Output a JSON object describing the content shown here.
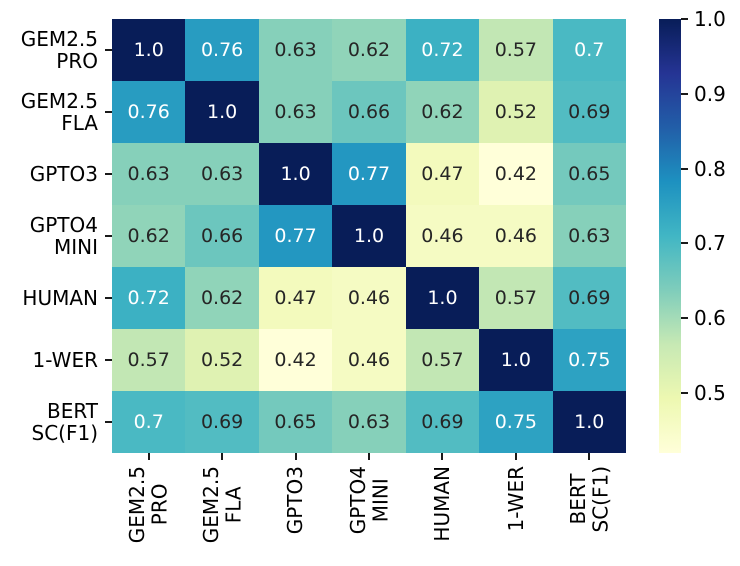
{
  "chart_data": {
    "type": "heatmap",
    "title": "",
    "xlabel": "",
    "ylabel": "",
    "categories": [
      "GEM2.5\nPRO",
      "GEM2.5\nFLA",
      "GPTO3",
      "GPTO4\nMINI",
      "HUMAN",
      "1-WER",
      "BERT\nSC(F1)"
    ],
    "matrix": [
      [
        1.0,
        0.76,
        0.63,
        0.62,
        0.72,
        0.57,
        0.7
      ],
      [
        0.76,
        1.0,
        0.63,
        0.66,
        0.62,
        0.52,
        0.69
      ],
      [
        0.63,
        0.63,
        1.0,
        0.77,
        0.47,
        0.42,
        0.65
      ],
      [
        0.62,
        0.66,
        0.77,
        1.0,
        0.46,
        0.46,
        0.63
      ],
      [
        0.72,
        0.62,
        0.47,
        0.46,
        1.0,
        0.57,
        0.69
      ],
      [
        0.57,
        0.52,
        0.42,
        0.46,
        0.57,
        1.0,
        0.75
      ],
      [
        0.7,
        0.69,
        0.65,
        0.63,
        0.69,
        0.75,
        1.0
      ]
    ],
    "annotations": [
      [
        "1.0",
        "0.76",
        "0.63",
        "0.62",
        "0.72",
        "0.57",
        "0.7"
      ],
      [
        "0.76",
        "1.0",
        "0.63",
        "0.66",
        "0.62",
        "0.52",
        "0.69"
      ],
      [
        "0.63",
        "0.63",
        "1.0",
        "0.77",
        "0.47",
        "0.42",
        "0.65"
      ],
      [
        "0.62",
        "0.66",
        "0.77",
        "1.0",
        "0.46",
        "0.46",
        "0.63"
      ],
      [
        "0.72",
        "0.62",
        "0.47",
        "0.46",
        "1.0",
        "0.57",
        "0.69"
      ],
      [
        "0.57",
        "0.52",
        "0.42",
        "0.46",
        "0.57",
        "1.0",
        "0.75"
      ],
      [
        "0.7",
        "0.69",
        "0.65",
        "0.63",
        "0.69",
        "0.75",
        "1.0"
      ]
    ],
    "vmin": 0.42,
    "vmax": 1.0,
    "colormap_name": "YlGnBu",
    "colormap_stops": [
      "#ffffd9",
      "#edf8b1",
      "#c7e9b4",
      "#7fcdbb",
      "#41b6c4",
      "#1d91c0",
      "#225ea8",
      "#253494",
      "#081d58"
    ],
    "annotation_color_light": "#ffffff",
    "annotation_color_dark": "#262626",
    "axis_text_color": "#000000",
    "grid": false,
    "legend_position": "right-colorbar",
    "colorbar_ticks": [
      {
        "label": "1.0",
        "value": 1.0
      },
      {
        "label": "0.9",
        "value": 0.9
      },
      {
        "label": "0.8",
        "value": 0.8
      },
      {
        "label": "0.7",
        "value": 0.7
      },
      {
        "label": "0.6",
        "value": 0.6
      },
      {
        "label": "0.5",
        "value": 0.5
      }
    ]
  }
}
